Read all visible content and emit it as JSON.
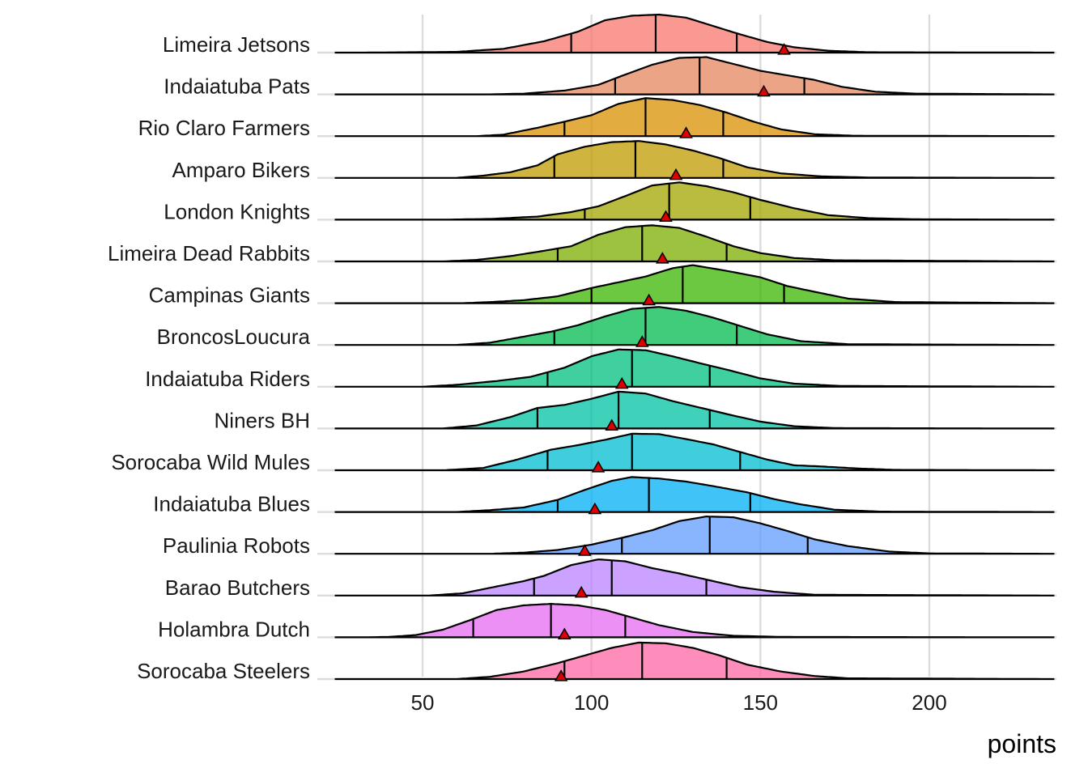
{
  "chart_data": {
    "type": "ridgeline",
    "xlabel": "points",
    "ylabel": "",
    "title": "",
    "xlim": [
      24,
      237
    ],
    "xticks": [
      50,
      100,
      150,
      200
    ],
    "grid": true,
    "series": [
      {
        "name": "Limeira Jetsons",
        "color": "#F8766D",
        "q1": 94,
        "median": 119,
        "q3": 143,
        "marker": 157,
        "density": [
          [
            32,
            0
          ],
          [
            60,
            0.02
          ],
          [
            74,
            0.1
          ],
          [
            86,
            0.3
          ],
          [
            96,
            0.55
          ],
          [
            104,
            0.85
          ],
          [
            112,
            0.97
          ],
          [
            120,
            1.0
          ],
          [
            128,
            0.92
          ],
          [
            136,
            0.7
          ],
          [
            144,
            0.48
          ],
          [
            152,
            0.28
          ],
          [
            160,
            0.14
          ],
          [
            170,
            0.05
          ],
          [
            182,
            0.01
          ],
          [
            236,
            0
          ]
        ]
      },
      {
        "name": "Indaiatuba Pats",
        "color": "#E6855E",
        "q1": 107,
        "median": 132,
        "q3": 163,
        "marker": 151,
        "density": [
          [
            32,
            0
          ],
          [
            70,
            0
          ],
          [
            80,
            0.02
          ],
          [
            92,
            0.1
          ],
          [
            102,
            0.25
          ],
          [
            110,
            0.52
          ],
          [
            118,
            0.78
          ],
          [
            126,
            0.96
          ],
          [
            134,
            0.98
          ],
          [
            142,
            0.8
          ],
          [
            150,
            0.62
          ],
          [
            158,
            0.5
          ],
          [
            166,
            0.38
          ],
          [
            174,
            0.2
          ],
          [
            184,
            0.07
          ],
          [
            196,
            0.02
          ],
          [
            236,
            0
          ]
        ]
      },
      {
        "name": "Rio Claro Farmers",
        "color": "#D89000",
        "q1": 92,
        "median": 116,
        "q3": 139,
        "marker": 128,
        "density": [
          [
            32,
            0
          ],
          [
            66,
            0
          ],
          [
            74,
            0.04
          ],
          [
            84,
            0.22
          ],
          [
            92,
            0.38
          ],
          [
            100,
            0.55
          ],
          [
            108,
            0.85
          ],
          [
            116,
            1.0
          ],
          [
            124,
            0.95
          ],
          [
            132,
            0.82
          ],
          [
            140,
            0.62
          ],
          [
            148,
            0.38
          ],
          [
            156,
            0.18
          ],
          [
            166,
            0.05
          ],
          [
            178,
            0.01
          ],
          [
            236,
            0
          ]
        ]
      },
      {
        "name": "Amparo Bikers",
        "color": "#C09B00",
        "q1": 89,
        "median": 113,
        "q3": 139,
        "marker": 125,
        "density": [
          [
            32,
            0
          ],
          [
            60,
            0
          ],
          [
            68,
            0.06
          ],
          [
            76,
            0.15
          ],
          [
            84,
            0.33
          ],
          [
            90,
            0.62
          ],
          [
            98,
            0.82
          ],
          [
            106,
            0.94
          ],
          [
            114,
            0.97
          ],
          [
            122,
            0.88
          ],
          [
            130,
            0.72
          ],
          [
            138,
            0.52
          ],
          [
            146,
            0.28
          ],
          [
            156,
            0.12
          ],
          [
            168,
            0.04
          ],
          [
            182,
            0.01
          ],
          [
            236,
            0
          ]
        ]
      },
      {
        "name": "London Knights",
        "color": "#A3A500",
        "q1": 98,
        "median": 123,
        "q3": 147,
        "marker": 122,
        "density": [
          [
            32,
            0
          ],
          [
            56,
            0
          ],
          [
            70,
            0.02
          ],
          [
            84,
            0.08
          ],
          [
            94,
            0.2
          ],
          [
            102,
            0.35
          ],
          [
            110,
            0.62
          ],
          [
            118,
            0.9
          ],
          [
            126,
            0.98
          ],
          [
            134,
            0.88
          ],
          [
            142,
            0.72
          ],
          [
            150,
            0.52
          ],
          [
            160,
            0.3
          ],
          [
            170,
            0.12
          ],
          [
            182,
            0.04
          ],
          [
            196,
            0.01
          ],
          [
            236,
            0
          ]
        ]
      },
      {
        "name": "Limeira Dead Rabbits",
        "color": "#7CAE00",
        "q1": 90,
        "median": 115,
        "q3": 140,
        "marker": 121,
        "density": [
          [
            32,
            0
          ],
          [
            56,
            0
          ],
          [
            66,
            0.04
          ],
          [
            76,
            0.14
          ],
          [
            86,
            0.28
          ],
          [
            94,
            0.4
          ],
          [
            102,
            0.7
          ],
          [
            110,
            0.9
          ],
          [
            118,
            0.95
          ],
          [
            126,
            0.88
          ],
          [
            134,
            0.65
          ],
          [
            142,
            0.4
          ],
          [
            150,
            0.22
          ],
          [
            160,
            0.09
          ],
          [
            172,
            0.03
          ],
          [
            236,
            0
          ]
        ]
      },
      {
        "name": "Campinas Giants",
        "color": "#39B600",
        "q1": 100,
        "median": 127,
        "q3": 157,
        "marker": 117,
        "density": [
          [
            32,
            0
          ],
          [
            62,
            0
          ],
          [
            70,
            0.03
          ],
          [
            80,
            0.08
          ],
          [
            90,
            0.18
          ],
          [
            100,
            0.4
          ],
          [
            108,
            0.55
          ],
          [
            116,
            0.7
          ],
          [
            124,
            0.92
          ],
          [
            130,
            1.0
          ],
          [
            140,
            0.85
          ],
          [
            150,
            0.68
          ],
          [
            158,
            0.45
          ],
          [
            166,
            0.3
          ],
          [
            176,
            0.12
          ],
          [
            190,
            0.03
          ],
          [
            236,
            0
          ]
        ]
      },
      {
        "name": "BroncosLoucura",
        "color": "#00BB4E",
        "q1": 89,
        "median": 116,
        "q3": 143,
        "marker": 115,
        "density": [
          [
            32,
            0
          ],
          [
            60,
            0
          ],
          [
            70,
            0.06
          ],
          [
            80,
            0.22
          ],
          [
            88,
            0.35
          ],
          [
            96,
            0.52
          ],
          [
            104,
            0.75
          ],
          [
            112,
            0.95
          ],
          [
            120,
            1.0
          ],
          [
            128,
            0.9
          ],
          [
            136,
            0.72
          ],
          [
            144,
            0.5
          ],
          [
            152,
            0.28
          ],
          [
            162,
            0.1
          ],
          [
            176,
            0.02
          ],
          [
            236,
            0
          ]
        ]
      },
      {
        "name": "Indaiatuba Riders",
        "color": "#00BF7D",
        "q1": 87,
        "median": 112,
        "q3": 135,
        "marker": 109,
        "density": [
          [
            32,
            0
          ],
          [
            50,
            0
          ],
          [
            60,
            0.05
          ],
          [
            72,
            0.15
          ],
          [
            82,
            0.26
          ],
          [
            92,
            0.5
          ],
          [
            100,
            0.8
          ],
          [
            108,
            0.98
          ],
          [
            116,
            0.96
          ],
          [
            124,
            0.8
          ],
          [
            132,
            0.62
          ],
          [
            140,
            0.45
          ],
          [
            150,
            0.22
          ],
          [
            160,
            0.08
          ],
          [
            174,
            0.02
          ],
          [
            236,
            0
          ]
        ]
      },
      {
        "name": "Niners BH",
        "color": "#00C1A3",
        "q1": 84,
        "median": 108,
        "q3": 135,
        "marker": 106,
        "density": [
          [
            32,
            0
          ],
          [
            56,
            0
          ],
          [
            66,
            0.08
          ],
          [
            76,
            0.3
          ],
          [
            84,
            0.54
          ],
          [
            92,
            0.62
          ],
          [
            100,
            0.78
          ],
          [
            108,
            0.97
          ],
          [
            116,
            0.92
          ],
          [
            124,
            0.72
          ],
          [
            132,
            0.55
          ],
          [
            140,
            0.38
          ],
          [
            150,
            0.18
          ],
          [
            160,
            0.06
          ],
          [
            172,
            0.01
          ],
          [
            236,
            0
          ]
        ]
      },
      {
        "name": "Sorocaba Wild Mules",
        "color": "#00BDD0",
        "q1": 87,
        "median": 112,
        "q3": 144,
        "marker": 102,
        "density": [
          [
            32,
            0
          ],
          [
            56,
            0
          ],
          [
            68,
            0.06
          ],
          [
            78,
            0.28
          ],
          [
            88,
            0.54
          ],
          [
            96,
            0.66
          ],
          [
            104,
            0.8
          ],
          [
            112,
            0.96
          ],
          [
            120,
            0.95
          ],
          [
            128,
            0.82
          ],
          [
            136,
            0.68
          ],
          [
            144,
            0.48
          ],
          [
            152,
            0.28
          ],
          [
            160,
            0.13
          ],
          [
            168,
            0.1
          ],
          [
            178,
            0.05
          ],
          [
            190,
            0.01
          ],
          [
            236,
            0
          ]
        ]
      },
      {
        "name": "Indaiatuba Blues",
        "color": "#00B0F6",
        "q1": 90,
        "median": 117,
        "q3": 147,
        "marker": 101,
        "density": [
          [
            32,
            0
          ],
          [
            60,
            0
          ],
          [
            70,
            0.05
          ],
          [
            80,
            0.12
          ],
          [
            90,
            0.32
          ],
          [
            98,
            0.58
          ],
          [
            106,
            0.82
          ],
          [
            112,
            0.92
          ],
          [
            120,
            0.88
          ],
          [
            128,
            0.8
          ],
          [
            136,
            0.68
          ],
          [
            146,
            0.52
          ],
          [
            154,
            0.34
          ],
          [
            162,
            0.2
          ],
          [
            172,
            0.06
          ],
          [
            186,
            0.01
          ],
          [
            236,
            0
          ]
        ]
      },
      {
        "name": "Paulinia Robots",
        "color": "#619CFF",
        "q1": 109,
        "median": 135,
        "q3": 164,
        "marker": 98,
        "density": [
          [
            32,
            0
          ],
          [
            70,
            0
          ],
          [
            80,
            0.03
          ],
          [
            90,
            0.1
          ],
          [
            100,
            0.24
          ],
          [
            110,
            0.44
          ],
          [
            118,
            0.62
          ],
          [
            126,
            0.86
          ],
          [
            134,
            0.98
          ],
          [
            142,
            0.96
          ],
          [
            150,
            0.8
          ],
          [
            158,
            0.6
          ],
          [
            166,
            0.38
          ],
          [
            176,
            0.2
          ],
          [
            188,
            0.06
          ],
          [
            200,
            0.01
          ],
          [
            236,
            0
          ]
        ]
      },
      {
        "name": "Barao Butchers",
        "color": "#B983FF",
        "q1": 83,
        "median": 106,
        "q3": 134,
        "marker": 97,
        "density": [
          [
            32,
            0
          ],
          [
            52,
            0
          ],
          [
            62,
            0.06
          ],
          [
            72,
            0.24
          ],
          [
            80,
            0.38
          ],
          [
            86,
            0.52
          ],
          [
            94,
            0.8
          ],
          [
            102,
            0.95
          ],
          [
            110,
            0.9
          ],
          [
            118,
            0.72
          ],
          [
            126,
            0.58
          ],
          [
            134,
            0.42
          ],
          [
            144,
            0.22
          ],
          [
            154,
            0.1
          ],
          [
            166,
            0.02
          ],
          [
            236,
            0
          ]
        ]
      },
      {
        "name": "Holambra Dutch",
        "color": "#E76BF3",
        "q1": 65,
        "median": 88,
        "q3": 110,
        "marker": 92,
        "density": [
          [
            32,
            0
          ],
          [
            40,
            0.01
          ],
          [
            48,
            0.06
          ],
          [
            56,
            0.2
          ],
          [
            64,
            0.45
          ],
          [
            72,
            0.72
          ],
          [
            80,
            0.84
          ],
          [
            88,
            0.88
          ],
          [
            96,
            0.84
          ],
          [
            104,
            0.72
          ],
          [
            112,
            0.52
          ],
          [
            120,
            0.32
          ],
          [
            130,
            0.14
          ],
          [
            142,
            0.04
          ],
          [
            156,
            0.01
          ],
          [
            236,
            0
          ]
        ]
      },
      {
        "name": "Sorocaba Steelers",
        "color": "#FF67A4",
        "q1": 92,
        "median": 115,
        "q3": 140,
        "marker": 91,
        "density": [
          [
            32,
            0
          ],
          [
            60,
            0
          ],
          [
            70,
            0.06
          ],
          [
            80,
            0.2
          ],
          [
            90,
            0.42
          ],
          [
            98,
            0.62
          ],
          [
            106,
            0.82
          ],
          [
            114,
            0.96
          ],
          [
            122,
            0.94
          ],
          [
            130,
            0.82
          ],
          [
            138,
            0.62
          ],
          [
            146,
            0.38
          ],
          [
            156,
            0.2
          ],
          [
            166,
            0.08
          ],
          [
            176,
            0.02
          ],
          [
            236,
            0
          ]
        ]
      }
    ]
  }
}
